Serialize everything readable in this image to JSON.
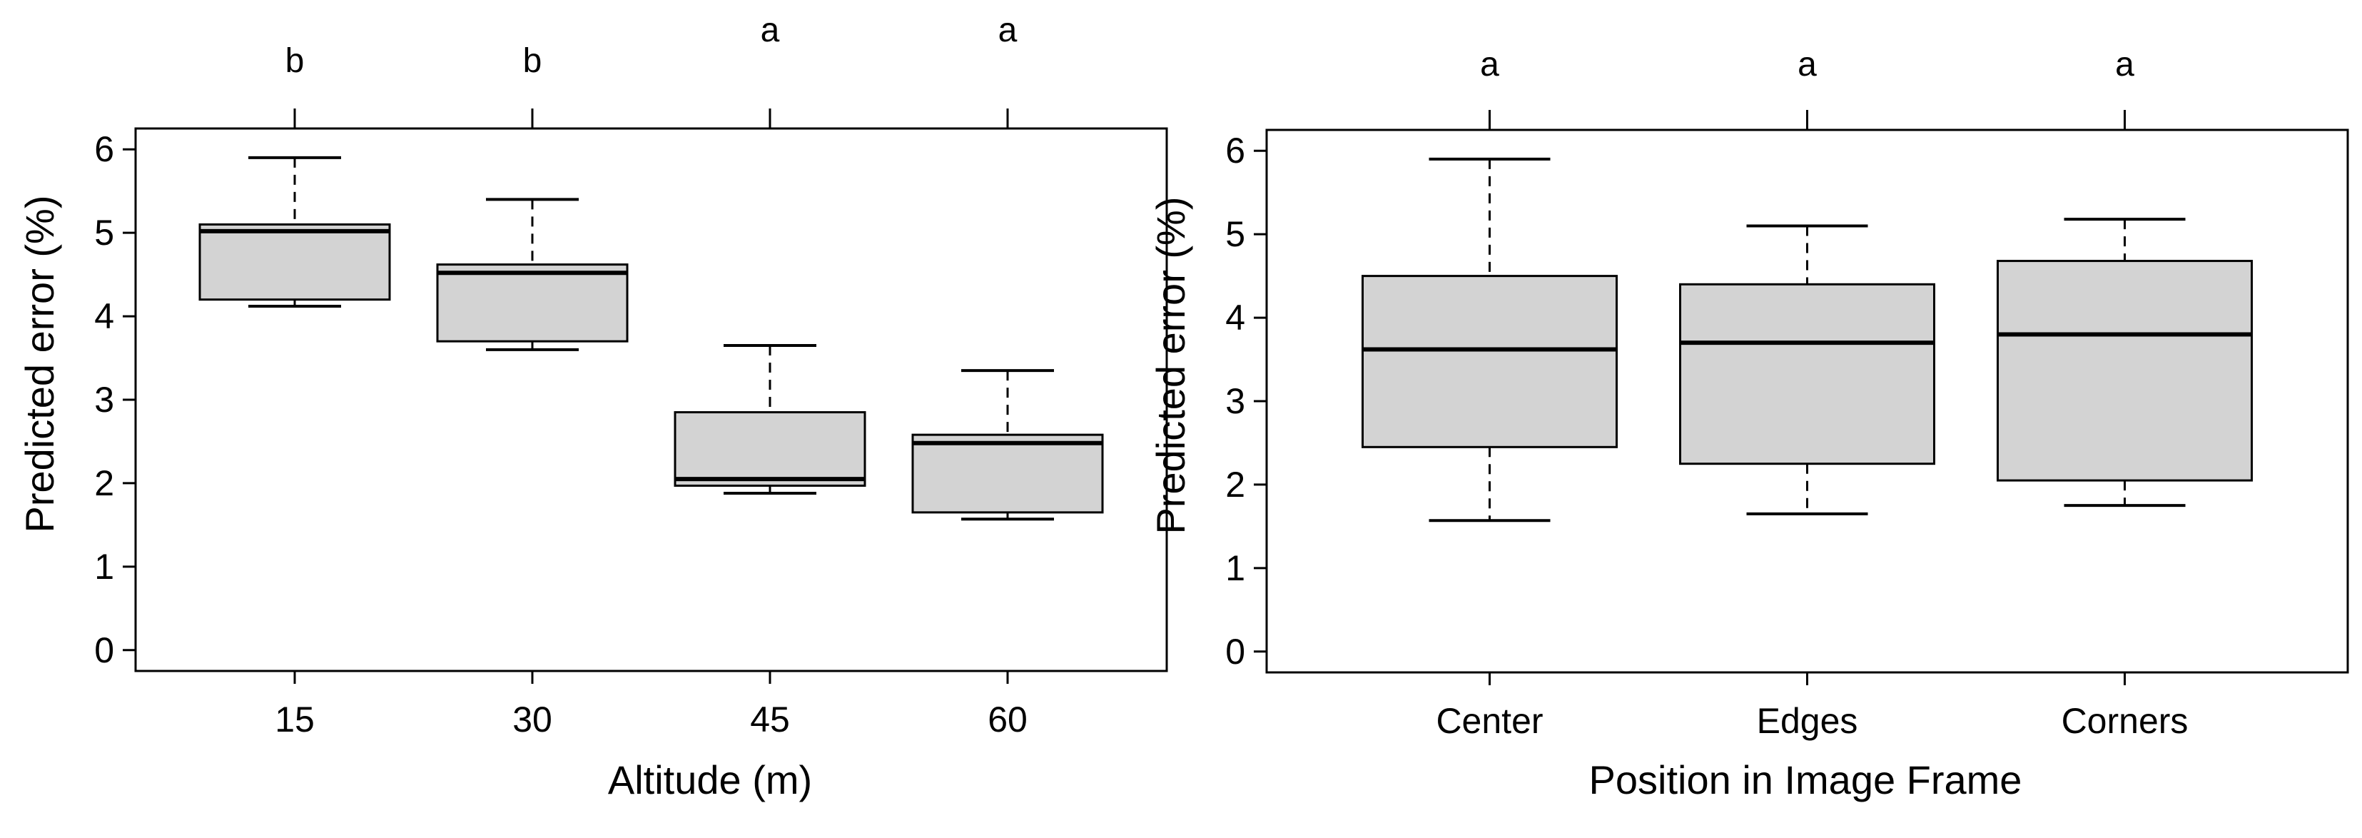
{
  "chart_data": [
    {
      "type": "box",
      "title": "",
      "xlabel": "Altitude (m)",
      "ylabel": "Predicted error (%)",
      "ylim": [
        -0.25,
        6.25
      ],
      "yticks": [
        0,
        1,
        2,
        3,
        4,
        5,
        6
      ],
      "categories": [
        "15",
        "30",
        "45",
        "60"
      ],
      "significance_letters": [
        "b",
        "b",
        "a",
        "a"
      ],
      "boxes": [
        {
          "min": 4.12,
          "q1": 4.2,
          "median": 5.02,
          "q3": 5.1,
          "max": 5.9
        },
        {
          "min": 3.6,
          "q1": 3.7,
          "median": 4.52,
          "q3": 4.62,
          "max": 5.4
        },
        {
          "min": 1.88,
          "q1": 1.97,
          "median": 2.05,
          "q3": 2.85,
          "max": 3.65
        },
        {
          "min": 1.57,
          "q1": 1.65,
          "median": 2.48,
          "q3": 2.58,
          "max": 3.35
        }
      ],
      "box_fill": "#d3d3d3",
      "grid": false,
      "legend": "none"
    },
    {
      "type": "box",
      "title": "",
      "xlabel": "Position in Image Frame",
      "ylabel": "Predicted error (%)",
      "ylim": [
        -0.25,
        6.25
      ],
      "yticks": [
        0,
        1,
        2,
        3,
        4,
        5,
        6
      ],
      "categories": [
        "Center",
        "Edges",
        "Corners"
      ],
      "significance_letters": [
        "a",
        "a",
        "a"
      ],
      "boxes": [
        {
          "min": 1.57,
          "q1": 2.45,
          "median": 3.62,
          "q3": 4.5,
          "max": 5.9
        },
        {
          "min": 1.65,
          "q1": 2.25,
          "median": 3.7,
          "q3": 4.4,
          "max": 5.1
        },
        {
          "min": 1.75,
          "q1": 2.05,
          "median": 3.8,
          "q3": 4.68,
          "max": 5.18
        }
      ],
      "box_fill": "#d3d3d3",
      "grid": false,
      "legend": "none"
    }
  ]
}
